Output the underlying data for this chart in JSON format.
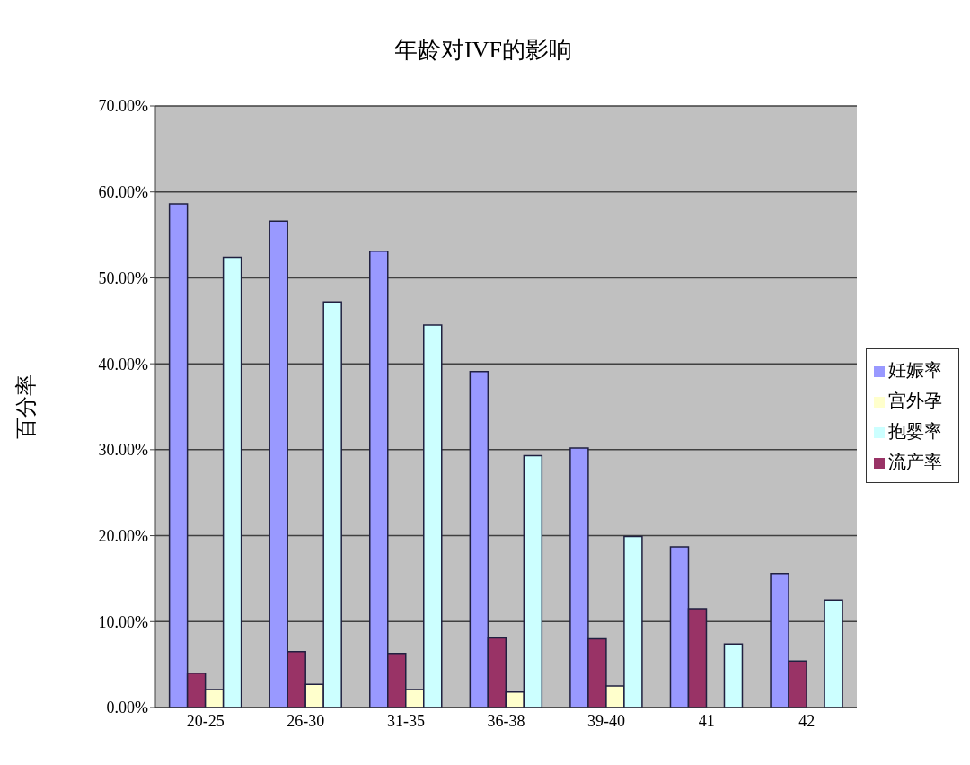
{
  "chart_data": {
    "type": "bar",
    "title": "年龄对IVF的影响",
    "ylabel": "百分率",
    "categories": [
      "20-25",
      "26-30",
      "31-35",
      "36-38",
      "39-40",
      "41",
      "42"
    ],
    "series": [
      {
        "name": "妊娠率",
        "color": "#9999ff",
        "values": [
          58.6,
          56.6,
          53.1,
          39.1,
          30.2,
          18.7,
          15.6
        ]
      },
      {
        "name": "流产率",
        "color": "#993366",
        "values": [
          4.0,
          6.5,
          6.3,
          8.1,
          8.0,
          11.5,
          5.4
        ]
      },
      {
        "name": "宫外孕",
        "color": "#ffffcc",
        "values": [
          2.1,
          2.7,
          2.1,
          1.8,
          2.5,
          null,
          null
        ]
      },
      {
        "name": "抱婴率",
        "color": "#ccffff",
        "values": [
          52.4,
          47.2,
          44.5,
          29.3,
          19.9,
          7.4,
          12.5
        ]
      }
    ],
    "ylim": [
      0,
      70
    ],
    "yticks": [
      {
        "value": 0,
        "label": "0.00%"
      },
      {
        "value": 10,
        "label": "10.00%"
      },
      {
        "value": 20,
        "label": "20.00%"
      },
      {
        "value": 30,
        "label": "30.00%"
      },
      {
        "value": 40,
        "label": "40.00%"
      },
      {
        "value": 50,
        "label": "50.00%"
      },
      {
        "value": 60,
        "label": "60.00%"
      },
      {
        "value": 70,
        "label": "70.00%"
      }
    ],
    "grid": "y",
    "legend": "right"
  }
}
